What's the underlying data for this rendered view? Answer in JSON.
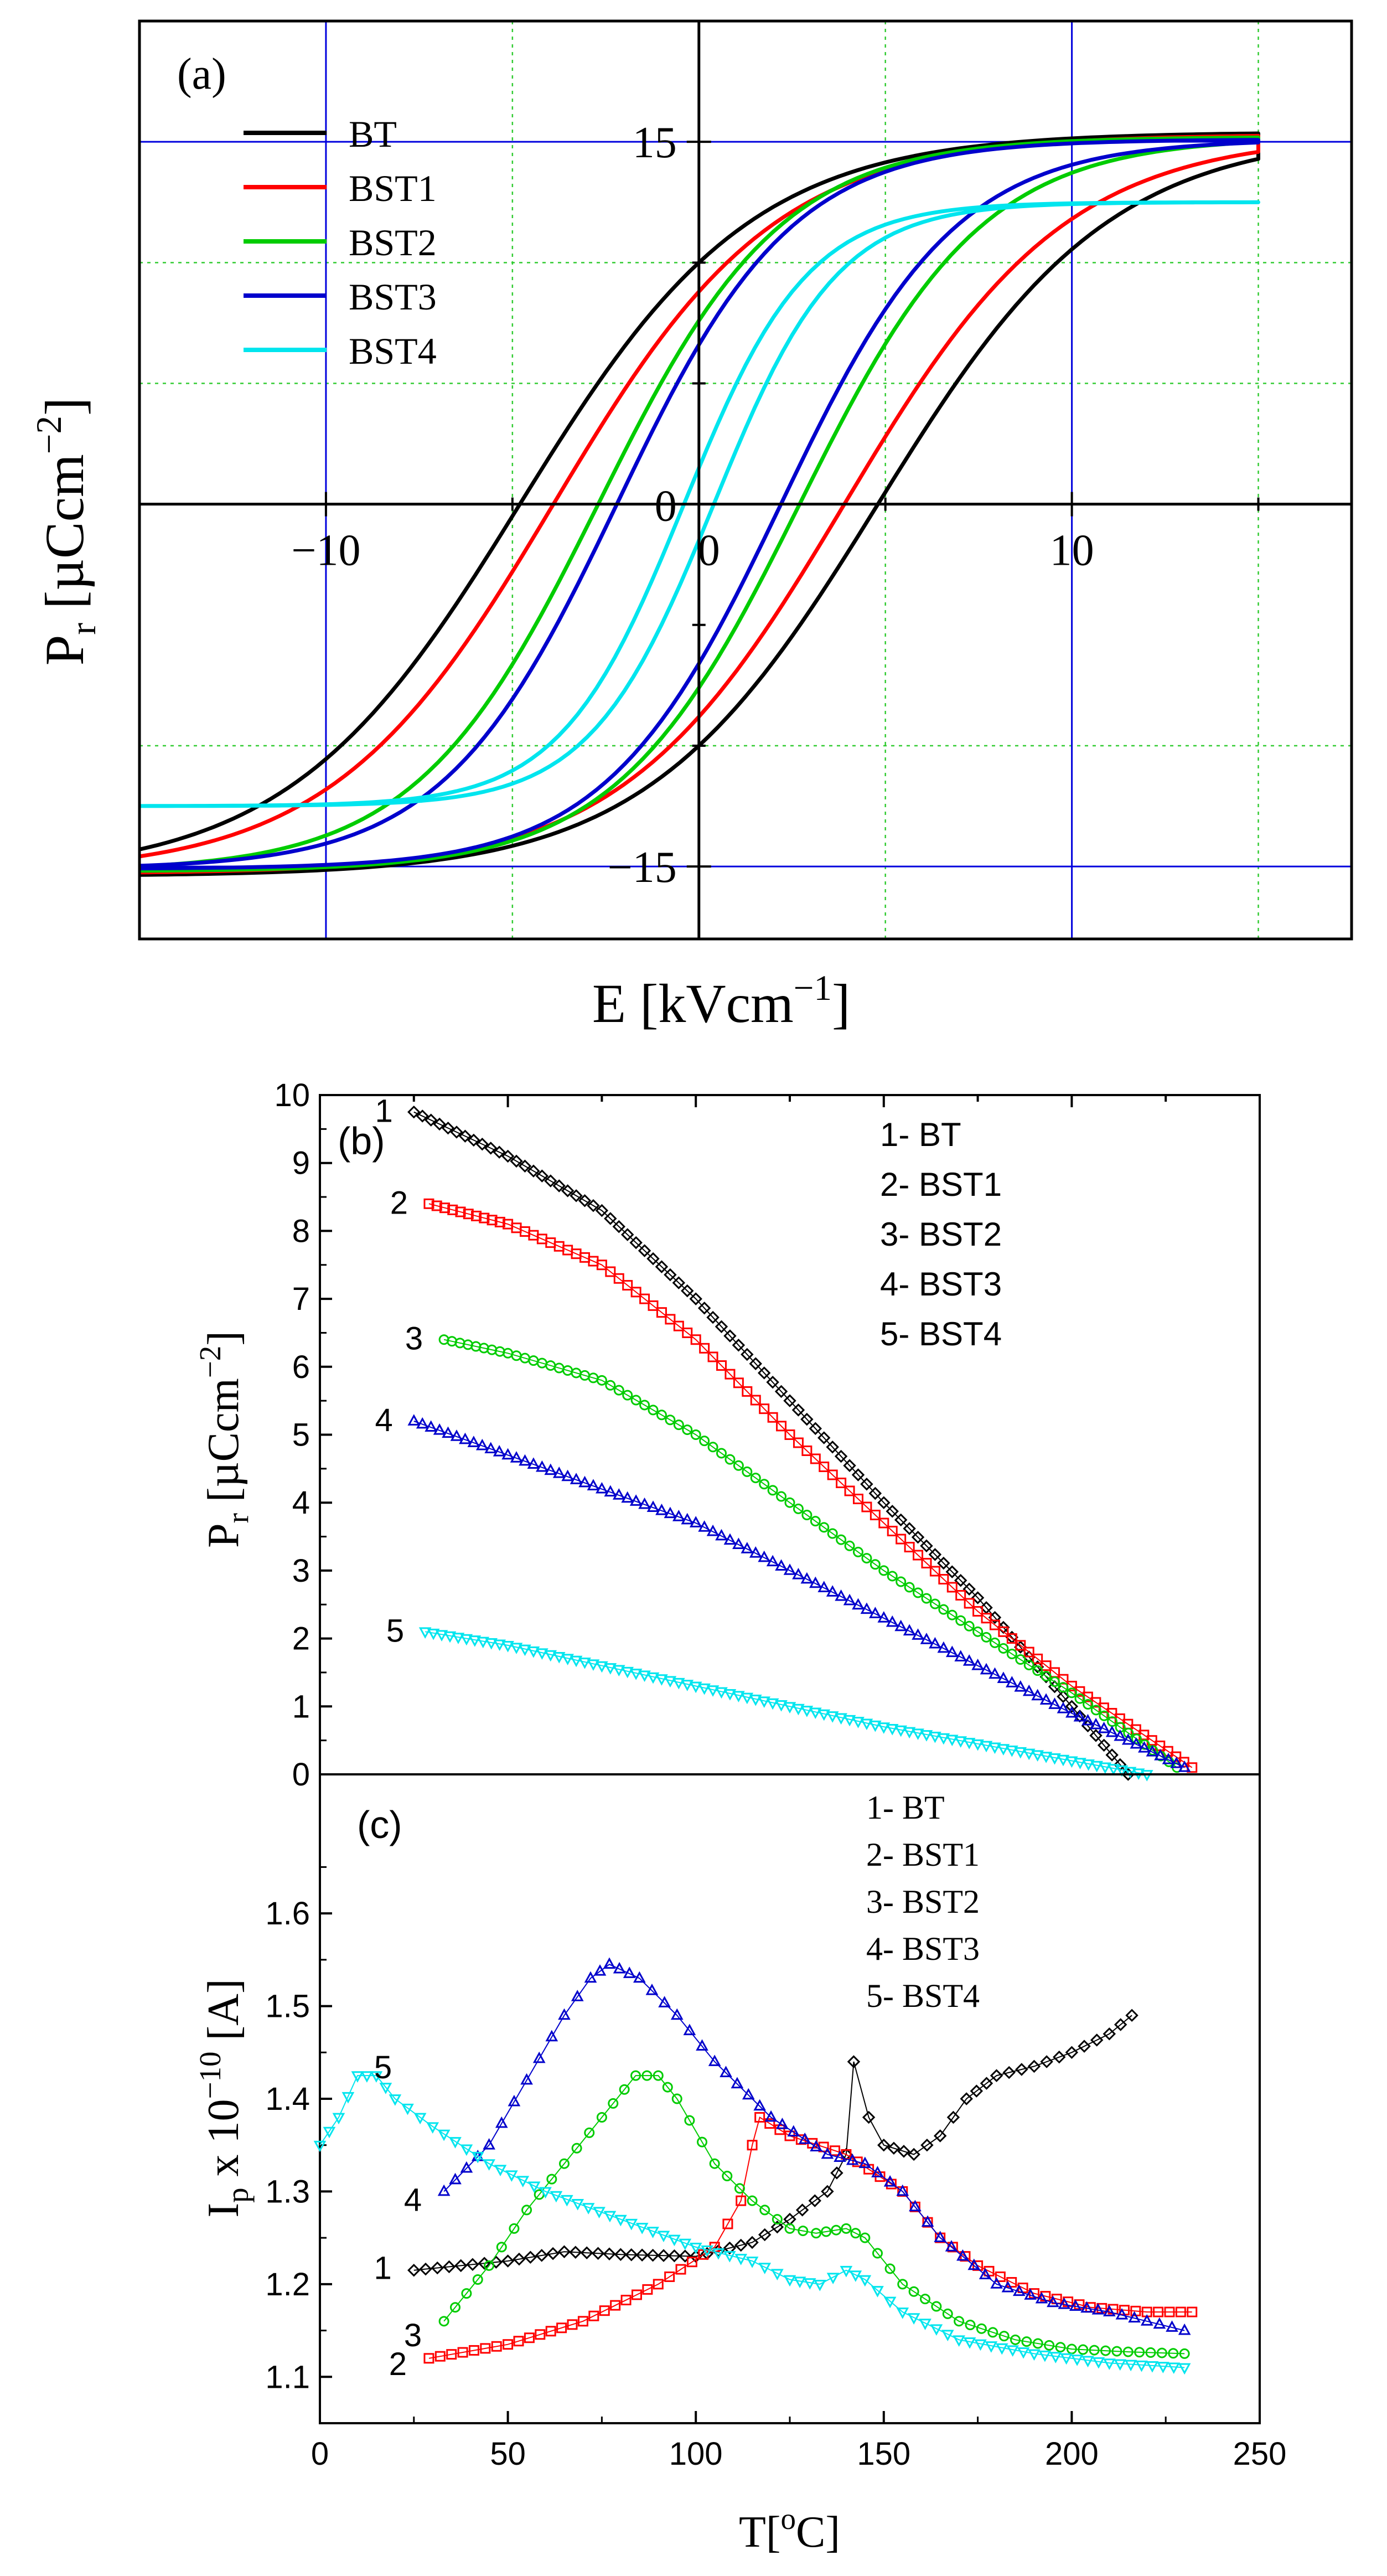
{
  "chart_data": [
    {
      "id": "a",
      "type": "line",
      "panel_label": "(a)",
      "xlabel": "E [kVcm",
      "xlabel_sup": "−1",
      "xlabel_end": "]",
      "ylabel": "P",
      "ylabel_sub": "r",
      "ylabel_mid": " [µCcm",
      "ylabel_sup": "−2",
      "ylabel_end": "]",
      "xlim": [
        -15,
        17.5
      ],
      "ylim": [
        -18,
        20
      ],
      "x_tick_labels": [
        "−10",
        "0",
        "10"
      ],
      "y_tick_labels": [
        "15",
        "0",
        "−15"
      ],
      "grid": true,
      "legend_position": "top-left",
      "series": [
        {
          "name": "BT",
          "color": "#000000",
          "Ps": 15.4,
          "Pr": 10.0,
          "Ec": 4.8,
          "Emax": 15
        },
        {
          "name": "BST1",
          "color": "#ff0000",
          "Ps": 15.3,
          "Pr": 8.8,
          "Ec": 3.9,
          "Emax": 15
        },
        {
          "name": "BST2",
          "color": "#00cc00",
          "Ps": 15.2,
          "Pr": 7.6,
          "Ec": 2.7,
          "Emax": 15
        },
        {
          "name": "BST3",
          "color": "#0000cc",
          "Ps": 15.1,
          "Pr": 6.6,
          "Ec": 2.2,
          "Emax": 15
        },
        {
          "name": "BST4",
          "color": "#00e5ee",
          "Ps": 12.5,
          "Pr": 1.5,
          "Ec": 0.4,
          "Emax": 15
        }
      ]
    },
    {
      "id": "b",
      "type": "scatter",
      "panel_label": "(b)",
      "ylabel": "P",
      "ylabel_sub": "r",
      "ylabel_mid": " [µCcm",
      "ylabel_sup": "−2",
      "ylabel_end": "]",
      "xlim": [
        0,
        250
      ],
      "ylim": [
        0,
        10
      ],
      "y_tick_labels": [
        "0",
        "1",
        "2",
        "3",
        "4",
        "5",
        "6",
        "7",
        "8",
        "9",
        "10"
      ],
      "legend": [
        "1- BT",
        "2- BST1",
        "3- BST2",
        "4- BST3",
        "5- BST4"
      ],
      "series": [
        {
          "name": "BT",
          "label": "1",
          "color": "#000000",
          "marker": "diamond",
          "points": [
            [
              25,
              9.75
            ],
            [
              50,
              9.1
            ],
            [
              75,
              8.3
            ],
            [
              100,
              7.0
            ],
            [
              125,
              5.5
            ],
            [
              150,
              4.0
            ],
            [
              175,
              2.6
            ],
            [
              200,
              1.0
            ],
            [
              215,
              0
            ]
          ]
        },
        {
          "name": "BST1",
          "label": "2",
          "color": "#ff0000",
          "marker": "square",
          "points": [
            [
              29,
              8.4
            ],
            [
              50,
              8.1
            ],
            [
              75,
              7.5
            ],
            [
              100,
              6.4
            ],
            [
              125,
              5.0
            ],
            [
              150,
              3.7
            ],
            [
              175,
              2.4
            ],
            [
              200,
              1.3
            ],
            [
              232,
              0.1
            ]
          ]
        },
        {
          "name": "BST2",
          "label": "3",
          "color": "#00cc00",
          "marker": "circle",
          "points": [
            [
              33,
              6.4
            ],
            [
              50,
              6.2
            ],
            [
              75,
              5.8
            ],
            [
              100,
              5.0
            ],
            [
              125,
              4.0
            ],
            [
              150,
              3.0
            ],
            [
              175,
              2.1
            ],
            [
              200,
              1.2
            ],
            [
              228,
              0.1
            ]
          ]
        },
        {
          "name": "BST3",
          "label": "4",
          "color": "#0000cc",
          "marker": "triangle",
          "points": [
            [
              25,
              5.2
            ],
            [
              50,
              4.7
            ],
            [
              75,
              4.2
            ],
            [
              100,
              3.7
            ],
            [
              125,
              3.0
            ],
            [
              150,
              2.3
            ],
            [
              175,
              1.6
            ],
            [
              200,
              0.9
            ],
            [
              230,
              0.1
            ]
          ]
        },
        {
          "name": "BST4",
          "label": "5",
          "color": "#00e5ee",
          "marker": "triangle-down",
          "points": [
            [
              28,
              2.1
            ],
            [
              50,
              1.9
            ],
            [
              75,
              1.6
            ],
            [
              100,
              1.3
            ],
            [
              125,
              1.0
            ],
            [
              150,
              0.7
            ],
            [
              175,
              0.45
            ],
            [
              200,
              0.2
            ],
            [
              220,
              0
            ]
          ]
        }
      ]
    },
    {
      "id": "c",
      "type": "scatter",
      "panel_label": "(c)",
      "xlabel": "T[",
      "xlabel_sup": "o",
      "xlabel_end": "C]",
      "ylabel": "I",
      "ylabel_sub": "p",
      "ylabel_mid": " x 10",
      "ylabel_sup": "−10",
      "ylabel_end": " [A]",
      "xlim": [
        0,
        250
      ],
      "ylim": [
        1.05,
        1.75
      ],
      "x_tick_labels": [
        "0",
        "50",
        "100",
        "150",
        "200",
        "250"
      ],
      "y_tick_labels": [
        "1.1",
        "1.2",
        "1.3",
        "1.4",
        "1.5",
        "1.6"
      ],
      "legend": [
        "1- BT",
        "2- BST1",
        "3- BST2",
        "4- BST3",
        "5- BST4"
      ],
      "series": [
        {
          "name": "BT",
          "label": "1",
          "color": "#000000",
          "marker": "diamond",
          "points": [
            [
              25,
              1.215
            ],
            [
              50,
              1.225
            ],
            [
              65,
              1.235
            ],
            [
              80,
              1.232
            ],
            [
              100,
              1.23
            ],
            [
              115,
              1.245
            ],
            [
              125,
              1.27
            ],
            [
              135,
              1.3
            ],
            [
              140,
              1.34
            ],
            [
              142,
              1.44
            ],
            [
              146,
              1.38
            ],
            [
              150,
              1.35
            ],
            [
              158,
              1.34
            ],
            [
              165,
              1.36
            ],
            [
              172,
              1.4
            ],
            [
              180,
              1.425
            ],
            [
              190,
              1.435
            ],
            [
              200,
              1.45
            ],
            [
              210,
              1.47
            ],
            [
              216,
              1.49
            ]
          ]
        },
        {
          "name": "BST1",
          "label": "2",
          "color": "#ff0000",
          "marker": "square",
          "points": [
            [
              29,
              1.12
            ],
            [
              50,
              1.135
            ],
            [
              70,
              1.16
            ],
            [
              90,
              1.2
            ],
            [
              105,
              1.24
            ],
            [
              112,
              1.29
            ],
            [
              115,
              1.35
            ],
            [
              117,
              1.38
            ],
            [
              125,
              1.36
            ],
            [
              140,
              1.34
            ],
            [
              155,
              1.3
            ],
            [
              165,
              1.25
            ],
            [
              175,
              1.22
            ],
            [
              190,
              1.19
            ],
            [
              205,
              1.175
            ],
            [
              220,
              1.17
            ],
            [
              232,
              1.17
            ]
          ]
        },
        {
          "name": "BST2",
          "label": "3",
          "color": "#00cc00",
          "marker": "circle",
          "points": [
            [
              33,
              1.16
            ],
            [
              45,
              1.22
            ],
            [
              55,
              1.28
            ],
            [
              65,
              1.33
            ],
            [
              75,
              1.38
            ],
            [
              84,
              1.425
            ],
            [
              90,
              1.425
            ],
            [
              95,
              1.4
            ],
            [
              105,
              1.33
            ],
            [
              115,
              1.29
            ],
            [
              125,
              1.26
            ],
            [
              132,
              1.255
            ],
            [
              140,
              1.26
            ],
            [
              145,
              1.25
            ],
            [
              155,
              1.2
            ],
            [
              170,
              1.16
            ],
            [
              185,
              1.14
            ],
            [
              200,
              1.13
            ],
            [
              215,
              1.127
            ],
            [
              230,
              1.125
            ]
          ]
        },
        {
          "name": "BST3",
          "label": "4",
          "color": "#0000cc",
          "marker": "triangle",
          "points": [
            [
              33,
              1.3
            ],
            [
              45,
              1.35
            ],
            [
              55,
              1.42
            ],
            [
              65,
              1.49
            ],
            [
              72,
              1.53
            ],
            [
              77,
              1.545
            ],
            [
              85,
              1.53
            ],
            [
              95,
              1.49
            ],
            [
              105,
              1.44
            ],
            [
              120,
              1.38
            ],
            [
              135,
              1.34
            ],
            [
              145,
              1.33
            ],
            [
              155,
              1.3
            ],
            [
              165,
              1.25
            ],
            [
              180,
              1.2
            ],
            [
              195,
              1.18
            ],
            [
              210,
              1.17
            ],
            [
              220,
              1.16
            ],
            [
              230,
              1.15
            ]
          ]
        },
        {
          "name": "BST4",
          "label": "5",
          "color": "#00e5ee",
          "marker": "triangle-down",
          "points": [
            [
              0,
              1.35
            ],
            [
              5,
              1.38
            ],
            [
              10,
              1.425
            ],
            [
              15,
              1.425
            ],
            [
              20,
              1.4
            ],
            [
              30,
              1.37
            ],
            [
              45,
              1.33
            ],
            [
              60,
              1.3
            ],
            [
              80,
              1.27
            ],
            [
              100,
              1.24
            ],
            [
              115,
              1.225
            ],
            [
              125,
              1.205
            ],
            [
              133,
              1.2
            ],
            [
              140,
              1.215
            ],
            [
              145,
              1.205
            ],
            [
              155,
              1.17
            ],
            [
              170,
              1.14
            ],
            [
              190,
              1.125
            ],
            [
              210,
              1.115
            ],
            [
              230,
              1.11
            ]
          ]
        }
      ]
    }
  ]
}
